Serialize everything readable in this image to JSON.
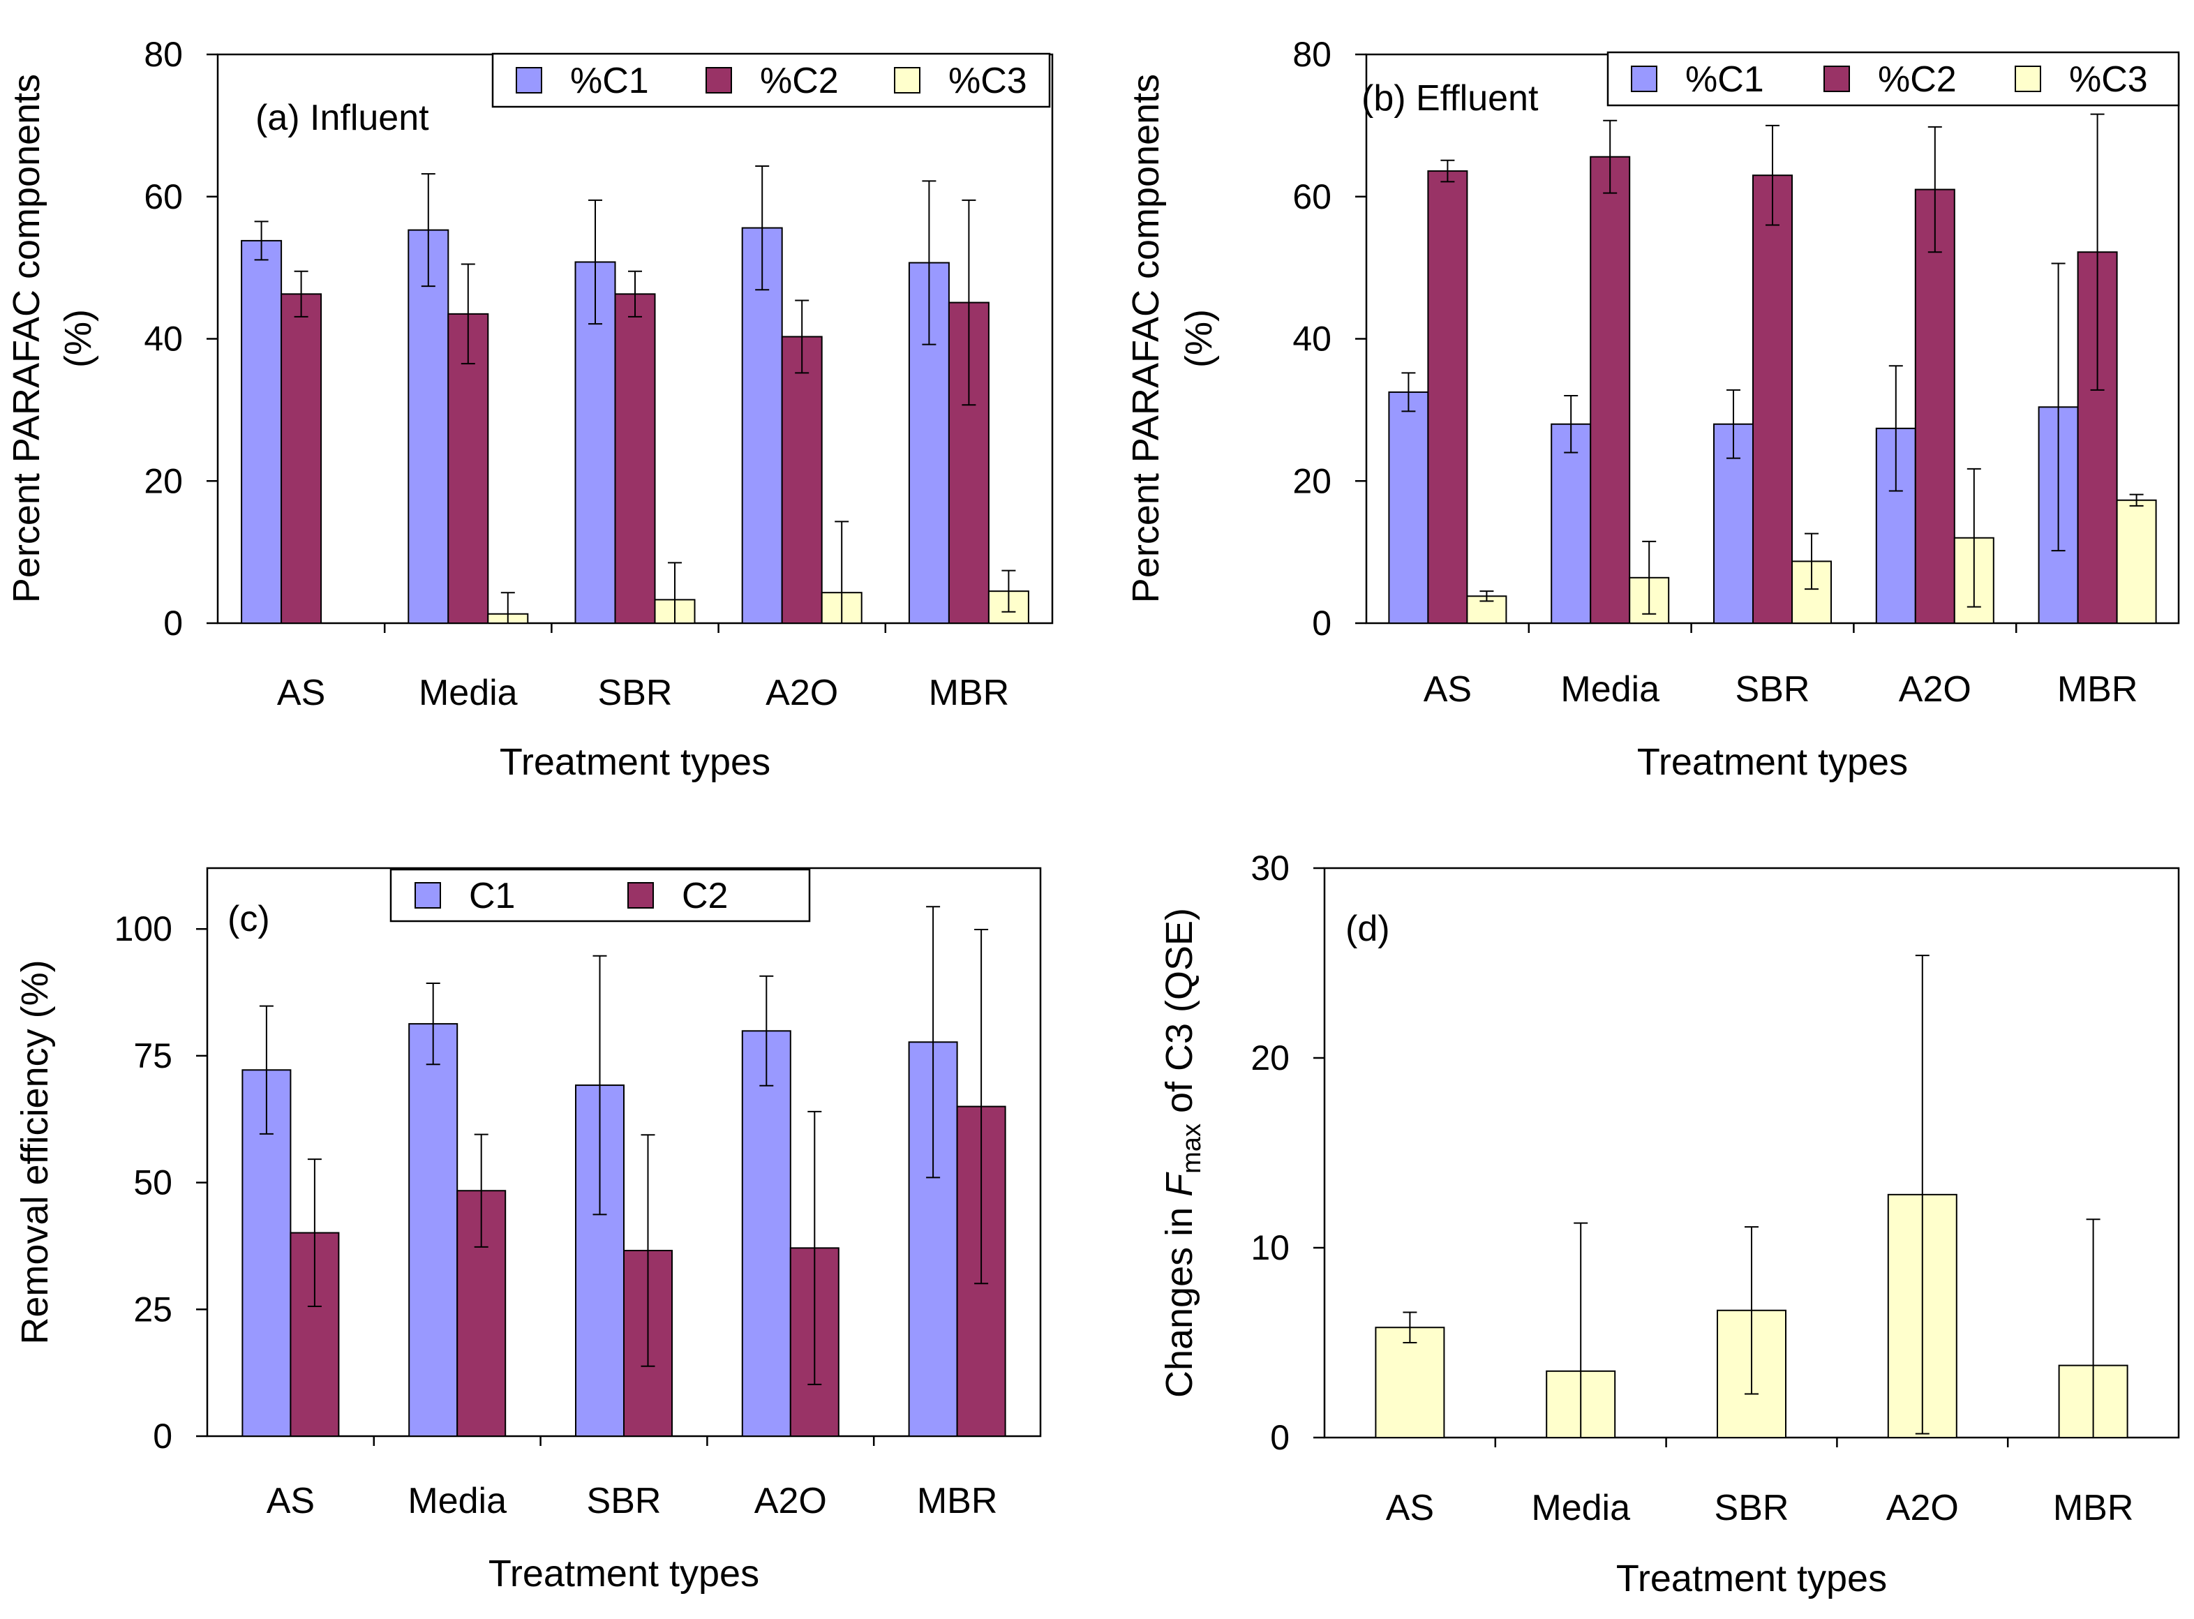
{
  "colors": {
    "c1": "#9999ff",
    "c2": "#993366",
    "c3": "#ffffcc",
    "stroke": "#000000"
  },
  "chart_data": [
    {
      "type": "bar",
      "panel_label": "(a) Influent",
      "categories": [
        "AS",
        "Media",
        "SBR",
        "A2O",
        "MBR"
      ],
      "series": [
        {
          "name": "%C1",
          "color_key": "c1",
          "values": [
            53.8,
            55.3,
            50.8,
            55.6,
            50.7
          ],
          "errors": [
            2.7,
            7.9,
            8.7,
            8.7,
            11.5
          ]
        },
        {
          "name": "%C2",
          "color_key": "c2",
          "values": [
            46.3,
            43.5,
            46.3,
            40.3,
            45.1
          ],
          "errors": [
            3.2,
            7.0,
            3.2,
            5.1,
            14.4
          ]
        },
        {
          "name": "%C3",
          "color_key": "c3",
          "values": [
            0,
            1.3,
            3.3,
            4.3,
            4.5
          ],
          "errors": [
            0,
            3.0,
            5.2,
            10.0,
            2.9
          ]
        }
      ],
      "title": "",
      "xlabel": "Treatment types",
      "ylabel_lines": [
        "Percent PARAFAC components",
        "(%)"
      ],
      "ylim": [
        0,
        80
      ],
      "yticks": [
        0,
        20,
        40,
        60,
        80
      ],
      "legend_position": "top-right",
      "grid": false
    },
    {
      "type": "bar",
      "panel_label": "(b) Effluent",
      "categories": [
        "AS",
        "Media",
        "SBR",
        "A2O",
        "MBR"
      ],
      "series": [
        {
          "name": "%C1",
          "color_key": "c1",
          "values": [
            32.5,
            28.0,
            28.0,
            27.4,
            30.4
          ],
          "errors": [
            2.7,
            4.0,
            4.8,
            8.8,
            20.2
          ]
        },
        {
          "name": "%C2",
          "color_key": "c2",
          "values": [
            63.6,
            65.6,
            63.0,
            61.0,
            52.2
          ],
          "errors": [
            1.5,
            5.1,
            7.0,
            8.8,
            19.4
          ]
        },
        {
          "name": "%C3",
          "color_key": "c3",
          "values": [
            3.8,
            6.4,
            8.7,
            12.0,
            17.3
          ],
          "errors": [
            0.7,
            5.1,
            3.9,
            9.7,
            0.8
          ]
        }
      ],
      "title": "",
      "xlabel": "Treatment types",
      "ylabel_lines": [
        "Percent PARAFAC components",
        "(%)"
      ],
      "ylim": [
        0,
        80
      ],
      "yticks": [
        0,
        20,
        40,
        60,
        80
      ],
      "legend_position": "top-right",
      "grid": false
    },
    {
      "type": "bar",
      "panel_label": "(c)",
      "categories": [
        "AS",
        "Media",
        "SBR",
        "A2O",
        "MBR"
      ],
      "series": [
        {
          "name": "C1",
          "color_key": "c1",
          "values": [
            72.2,
            81.3,
            69.2,
            79.9,
            77.7
          ],
          "errors": [
            12.6,
            8.0,
            25.5,
            10.8,
            26.7
          ]
        },
        {
          "name": "C2",
          "color_key": "c2",
          "values": [
            40.1,
            48.4,
            36.6,
            37.1,
            65.0
          ],
          "errors": [
            14.5,
            11.1,
            22.8,
            26.9,
            34.9
          ]
        }
      ],
      "title": "",
      "xlabel": "Treatment types",
      "ylabel_lines": [
        "Removal efficiency (%)"
      ],
      "ylim": [
        0,
        112
      ],
      "yticks": [
        0,
        25,
        50,
        75,
        100
      ],
      "legend_position": "top-center",
      "grid": false
    },
    {
      "type": "bar",
      "panel_label": "(d)",
      "categories": [
        "AS",
        "Media",
        "SBR",
        "A2O",
        "MBR"
      ],
      "series": [
        {
          "name": "C3",
          "color_key": "c3",
          "values": [
            5.8,
            3.5,
            6.7,
            12.8,
            3.8
          ],
          "errors": [
            0.8,
            7.8,
            4.4,
            12.6,
            7.7
          ]
        }
      ],
      "title": "",
      "xlabel": "Treatment types",
      "ylabel_parts": {
        "prefix": "Changes in ",
        "italic": "F",
        "subscript": "max",
        "suffix": " of C3 (QSE)"
      },
      "ylim": [
        0,
        30
      ],
      "yticks": [
        0,
        10,
        20,
        30
      ],
      "grid": false
    }
  ]
}
